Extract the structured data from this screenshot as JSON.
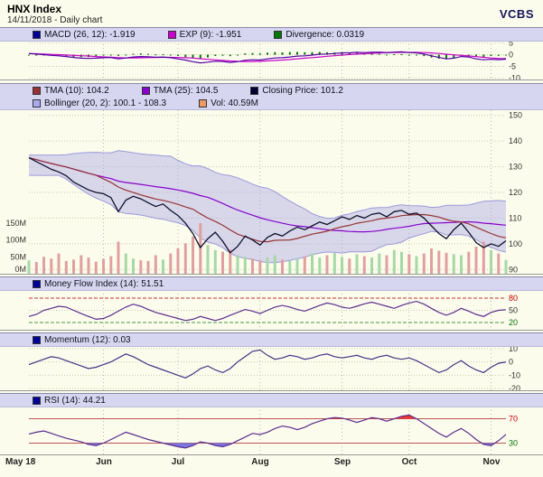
{
  "header": {
    "title": "HNX Index",
    "subtitle": "14/11/2018 - Daily chart",
    "logo": "VCBS"
  },
  "palette": {
    "background": "#fcfcec",
    "legend_background": "#d6d6f0",
    "legend_border": "#8888aa",
    "grid": "#c9c9ae",
    "month_grid": "#b9b9a9",
    "axis_text": "#333333",
    "separator": "#999999"
  },
  "x_axis": {
    "tick_indices": [
      0,
      10,
      20,
      31,
      42,
      51,
      62
    ],
    "tick_labels": [
      "May 18",
      "Jun",
      "Jul",
      "Aug",
      "Sep",
      "Oct",
      "Nov"
    ]
  },
  "chart_data": [
    {
      "id": "macd",
      "type": "line+histogram",
      "ylim": [
        -11,
        6
      ],
      "yticks": [
        {
          "v": 5,
          "t": "5"
        },
        {
          "v": 0,
          "t": "0"
        },
        {
          "v": -5,
          "t": "-5"
        },
        {
          "v": -10,
          "t": "-10"
        }
      ],
      "legend": [
        [
          {
            "c": "#000099",
            "t": "MACD (26, 12): -1.919"
          },
          {
            "c": "#cc00cc",
            "t": "EXP (9): -1.951"
          },
          {
            "c": "#007700",
            "t": "Divergence: 0.0319"
          }
        ]
      ],
      "line_color": "#5500aa",
      "exp_color": "#cc00cc",
      "hist_color": "#007700",
      "values": [
        0.5,
        0.3,
        0,
        -0.3,
        -0.5,
        -0.8,
        -1.2,
        -1.5,
        -1.6,
        -1.5,
        -1.3,
        -1.2,
        -1.8,
        -1.4,
        -1,
        -0.8,
        -0.9,
        -1.1,
        -1,
        -1.3,
        -1.8,
        -2.3,
        -3,
        -3.5,
        -3.2,
        -2.8,
        -2.9,
        -3.3,
        -3,
        -2.4,
        -2.2,
        -2.3,
        -1.8,
        -1.4,
        -1.3,
        -1,
        -0.6,
        -0.5,
        -0.2,
        0.2,
        0.3,
        0.5,
        0.8,
        0.8,
        1,
        0.9,
        1,
        1.1,
        0.9,
        1.1,
        1.2,
        0.9,
        0.8,
        0.3,
        -0.5,
        -1.2,
        -1.8,
        -1.5,
        -0.8,
        -1,
        -1.8,
        -2.2,
        -2,
        -2.1,
        -1.919
      ]
    },
    {
      "id": "price",
      "type": "line+band+volume",
      "ylim": [
        88,
        152
      ],
      "yticks": [
        {
          "v": 150,
          "t": "150"
        },
        {
          "v": 140,
          "t": "140"
        },
        {
          "v": 130,
          "t": "130"
        },
        {
          "v": 120,
          "t": "120"
        },
        {
          "v": 110,
          "t": "110"
        },
        {
          "v": 100,
          "t": "100"
        },
        {
          "v": 90,
          "t": "90"
        }
      ],
      "legend": [
        [
          {
            "c": "#993333",
            "t": "TMA (10): 104.2"
          },
          {
            "c": "#8800cc",
            "t": "TMA (25): 104.5"
          },
          {
            "c": "#000033",
            "t": "Closing Price: 101.2"
          }
        ],
        [
          {
            "c": "#aaaaee",
            "t": "Bollinger (20, 2): 100.1 - 108.3"
          },
          {
            "c": "#ee9966",
            "t": "Vol: 40.59M"
          }
        ]
      ],
      "close_color": "#101030",
      "tma10_color": "#993333",
      "tma25_color": "#8800cc",
      "band_fill": "rgba(170,170,230,0.45)",
      "band_edge": "#9999dd",
      "vol_up_color": "#a6d9a6",
      "vol_down_color": "#e0a0a0",
      "close": [
        133.5,
        132,
        130.5,
        129,
        128,
        126.5,
        124,
        122.5,
        121,
        120,
        119.5,
        118,
        112.5,
        117,
        118.5,
        117.5,
        116,
        114.5,
        115.5,
        113,
        111,
        108,
        104,
        98.5,
        102,
        104.5,
        101,
        96.5,
        99,
        103,
        101.5,
        99.5,
        102.5,
        104,
        103,
        105,
        106.5,
        105.5,
        107,
        108.5,
        107.5,
        109,
        110.5,
        109.5,
        111,
        110,
        111.5,
        112,
        110.5,
        112.5,
        113,
        111.5,
        112,
        110,
        107,
        104,
        102,
        105.5,
        108,
        104.5,
        100.5,
        98.5,
        100,
        99,
        101.2
      ],
      "volume": [
        40,
        35,
        50,
        45,
        60,
        38,
        42,
        55,
        48,
        36,
        44,
        52,
        95,
        60,
        45,
        40,
        38,
        55,
        42,
        60,
        75,
        90,
        110,
        150,
        85,
        70,
        65,
        72,
        55,
        50,
        45,
        40,
        48,
        55,
        42,
        38,
        45,
        52,
        60,
        48,
        55,
        62,
        50,
        45,
        58,
        52,
        48,
        60,
        55,
        70,
        65,
        58,
        52,
        60,
        75,
        68,
        62,
        58,
        55,
        65,
        80,
        95,
        70,
        60,
        41
      ],
      "volume_axis": [
        {
          "v": 150,
          "t": "150M"
        },
        {
          "v": 100,
          "t": "100M"
        },
        {
          "v": 50,
          "t": "50M"
        },
        {
          "v": 0,
          "t": "0M"
        }
      ],
      "volume_max": 150
    },
    {
      "id": "mfi",
      "type": "line",
      "ylim": [
        0,
        100
      ],
      "yticks": [
        {
          "v": 80,
          "t": "80",
          "c": "#cc0000"
        },
        {
          "v": 50,
          "t": "50"
        },
        {
          "v": 20,
          "t": "20",
          "c": "#007700"
        }
      ],
      "thresholds": [
        {
          "v": 80,
          "c": "#cc3333",
          "dash": "4,2"
        },
        {
          "v": 20,
          "c": "#449944",
          "dash": "4,2"
        }
      ],
      "legend": [
        [
          {
            "c": "#000099",
            "t": "Money Flow Index (14): 51.51"
          }
        ]
      ],
      "line_color": "#5c2d91",
      "values": [
        35,
        40,
        50,
        55,
        60,
        58,
        50,
        42,
        35,
        28,
        30,
        38,
        48,
        58,
        65,
        60,
        52,
        45,
        40,
        35,
        30,
        25,
        28,
        35,
        30,
        25,
        30,
        38,
        45,
        52,
        48,
        42,
        50,
        58,
        62,
        58,
        52,
        48,
        55,
        62,
        68,
        64,
        58,
        55,
        60,
        66,
        70,
        65,
        60,
        55,
        62,
        68,
        72,
        65,
        55,
        45,
        38,
        45,
        55,
        48,
        40,
        35,
        45,
        50,
        51.51
      ]
    },
    {
      "id": "momentum",
      "type": "line",
      "ylim": [
        -22,
        12
      ],
      "yticks": [
        {
          "v": 10,
          "t": "10"
        },
        {
          "v": 0,
          "t": "0"
        },
        {
          "v": -10,
          "t": "-10"
        },
        {
          "v": -20,
          "t": "-20"
        }
      ],
      "legend": [
        [
          {
            "c": "#000099",
            "t": "Momentum (12): 0.03"
          }
        ]
      ],
      "line_color": "#443388",
      "values": [
        -2,
        0,
        2,
        4,
        3,
        1,
        -1,
        -3,
        -5,
        -4,
        -2,
        0,
        3,
        6,
        4,
        1,
        -2,
        -4,
        -6,
        -8,
        -10,
        -12,
        -9,
        -5,
        -3,
        -6,
        -8,
        -5,
        0,
        4,
        8,
        9,
        5,
        2,
        3,
        5,
        4,
        2,
        3,
        5,
        6,
        4,
        3,
        4,
        5,
        3,
        2,
        4,
        5,
        3,
        2,
        3,
        1,
        -2,
        -5,
        -8,
        -6,
        -2,
        1,
        -3,
        -6,
        -8,
        -4,
        -1,
        0.03
      ]
    },
    {
      "id": "rsi",
      "type": "line",
      "ylim": [
        10,
        90
      ],
      "yticks": [
        {
          "v": 70,
          "t": "70",
          "c": "#cc0000"
        },
        {
          "v": 30,
          "t": "30",
          "c": "#007700"
        }
      ],
      "thresholds": [
        {
          "v": 70,
          "c": "#bb5555",
          "dash": ""
        },
        {
          "v": 30,
          "c": "#bb5555",
          "dash": ""
        }
      ],
      "fills": {
        "above": 70,
        "above_color": "#ee3333",
        "below": 30,
        "below_color": "#7777dd"
      },
      "legend": [
        [
          {
            "c": "#000099",
            "t": "RSI (14): 44.21"
          }
        ]
      ],
      "line_color": "#5c2d91",
      "values": [
        45,
        48,
        50,
        46,
        42,
        38,
        35,
        32,
        28,
        26,
        30,
        36,
        42,
        48,
        44,
        40,
        36,
        33,
        30,
        27,
        24,
        22,
        26,
        32,
        30,
        26,
        24,
        28,
        34,
        40,
        46,
        44,
        48,
        54,
        58,
        56,
        52,
        56,
        62,
        66,
        70,
        72,
        71,
        68,
        64,
        68,
        72,
        70,
        66,
        70,
        74,
        76,
        70,
        62,
        54,
        46,
        40,
        48,
        54,
        46,
        36,
        28,
        26,
        34,
        44.21
      ]
    }
  ]
}
